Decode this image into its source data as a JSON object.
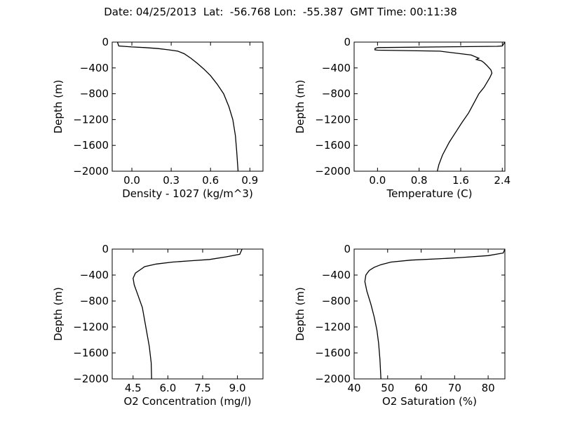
{
  "figure": {
    "title": "Date: 04/25/2013  Lat:  -56.768 Lon:  -55.387  GMT Time: 00:11:38"
  },
  "chart_data": [
    {
      "type": "line",
      "xlabel": "Density - 1027 (kg/m^3)",
      "ylabel": "Depth (m)",
      "xlim": [
        -0.15,
        1.0
      ],
      "ylim": [
        -2000,
        0
      ],
      "xticks": [
        "0.0",
        "0.3",
        "0.6",
        "0.9"
      ],
      "xtick_values": [
        0.0,
        0.3,
        0.6,
        0.9
      ],
      "yticks": [
        "0",
        "−400",
        "−800",
        "−1200",
        "−1600",
        "−2000"
      ],
      "ytick_values": [
        0,
        -400,
        -800,
        -1200,
        -1600,
        -2000
      ],
      "x": [
        -0.11,
        -0.1,
        0.0,
        0.1,
        0.2,
        0.28,
        0.35,
        0.4,
        0.45,
        0.5,
        0.55,
        0.6,
        0.65,
        0.7,
        0.74,
        0.77,
        0.79,
        0.8,
        0.81
      ],
      "y": [
        0,
        -60,
        -75,
        -85,
        -100,
        -120,
        -140,
        -180,
        -250,
        -330,
        -420,
        -520,
        -650,
        -800,
        -1000,
        -1200,
        -1450,
        -1700,
        -2000
      ]
    },
    {
      "type": "line",
      "xlabel": "Temperature (C)",
      "ylabel": "Depth (m)",
      "xlim": [
        -0.45,
        2.45
      ],
      "ylim": [
        -2000,
        0
      ],
      "xticks": [
        "0.0",
        "0.8",
        "1.6",
        "2.4"
      ],
      "xtick_values": [
        0.0,
        0.8,
        1.6,
        2.4
      ],
      "yticks": [
        "0",
        "−400",
        "−800",
        "−1200",
        "−1600",
        "−2000"
      ],
      "ytick_values": [
        0,
        -400,
        -800,
        -1200,
        -1600,
        -2000
      ],
      "x": [
        2.45,
        2.4,
        2.3,
        0.0,
        -0.05,
        -0.05,
        0.0,
        1.2,
        1.8,
        1.95,
        1.9,
        2.0,
        2.05,
        2.1,
        2.18,
        2.2,
        2.16,
        2.05,
        1.95,
        1.85,
        1.75,
        1.62,
        1.5,
        1.38,
        1.25,
        1.18,
        1.15
      ],
      "y": [
        0,
        -60,
        -65,
        -85,
        -100,
        -120,
        -125,
        -140,
        -200,
        -250,
        -270,
        -290,
        -320,
        -360,
        -430,
        -480,
        -550,
        -700,
        -800,
        -950,
        -1100,
        -1250,
        -1400,
        -1550,
        -1750,
        -1900,
        -2000
      ]
    },
    {
      "type": "line",
      "xlabel": "O2 Concentration (mg/l)",
      "ylabel": "Depth (m)",
      "xlim": [
        3.6,
        10.1
      ],
      "ylim": [
        -2000,
        0
      ],
      "xticks": [
        "4.5",
        "6.0",
        "7.5",
        "9.0"
      ],
      "xtick_values": [
        4.5,
        6.0,
        7.5,
        9.0
      ],
      "yticks": [
        "0",
        "−400",
        "−800",
        "−1200",
        "−1600",
        "−2000"
      ],
      "ytick_values": [
        0,
        -400,
        -800,
        -1200,
        -1600,
        -2000
      ],
      "x": [
        9.2,
        9.1,
        8.5,
        7.8,
        7.0,
        6.2,
        5.5,
        5.0,
        4.8,
        4.6,
        4.5,
        4.55,
        4.7,
        4.9,
        5.0,
        5.1,
        5.2,
        5.28,
        5.3
      ],
      "y": [
        0,
        -80,
        -120,
        -160,
        -180,
        -200,
        -230,
        -270,
        -320,
        -370,
        -450,
        -550,
        -700,
        -900,
        -1100,
        -1300,
        -1500,
        -1750,
        -2000
      ]
    },
    {
      "type": "line",
      "xlabel": "O2 Saturation (%)",
      "ylabel": "Depth (m)",
      "xlim": [
        40,
        85
      ],
      "ylim": [
        -2000,
        0
      ],
      "xticks": [
        "40",
        "50",
        "60",
        "70",
        "80"
      ],
      "xtick_values": [
        40,
        50,
        60,
        70,
        80
      ],
      "yticks": [
        "0",
        "−400",
        "−800",
        "−1200",
        "−1600",
        "−2000"
      ],
      "ytick_values": [
        0,
        -400,
        -800,
        -1200,
        -1600,
        -2000
      ],
      "x": [
        85,
        84.5,
        80,
        72,
        65,
        57,
        51,
        48,
        46,
        44.5,
        43.5,
        43.2,
        43.8,
        45,
        46,
        46.8,
        47.3,
        47.7,
        48
      ],
      "y": [
        0,
        -60,
        -100,
        -130,
        -150,
        -170,
        -200,
        -240,
        -280,
        -330,
        -400,
        -500,
        -650,
        -850,
        -1050,
        -1250,
        -1450,
        -1700,
        -2000
      ]
    }
  ]
}
